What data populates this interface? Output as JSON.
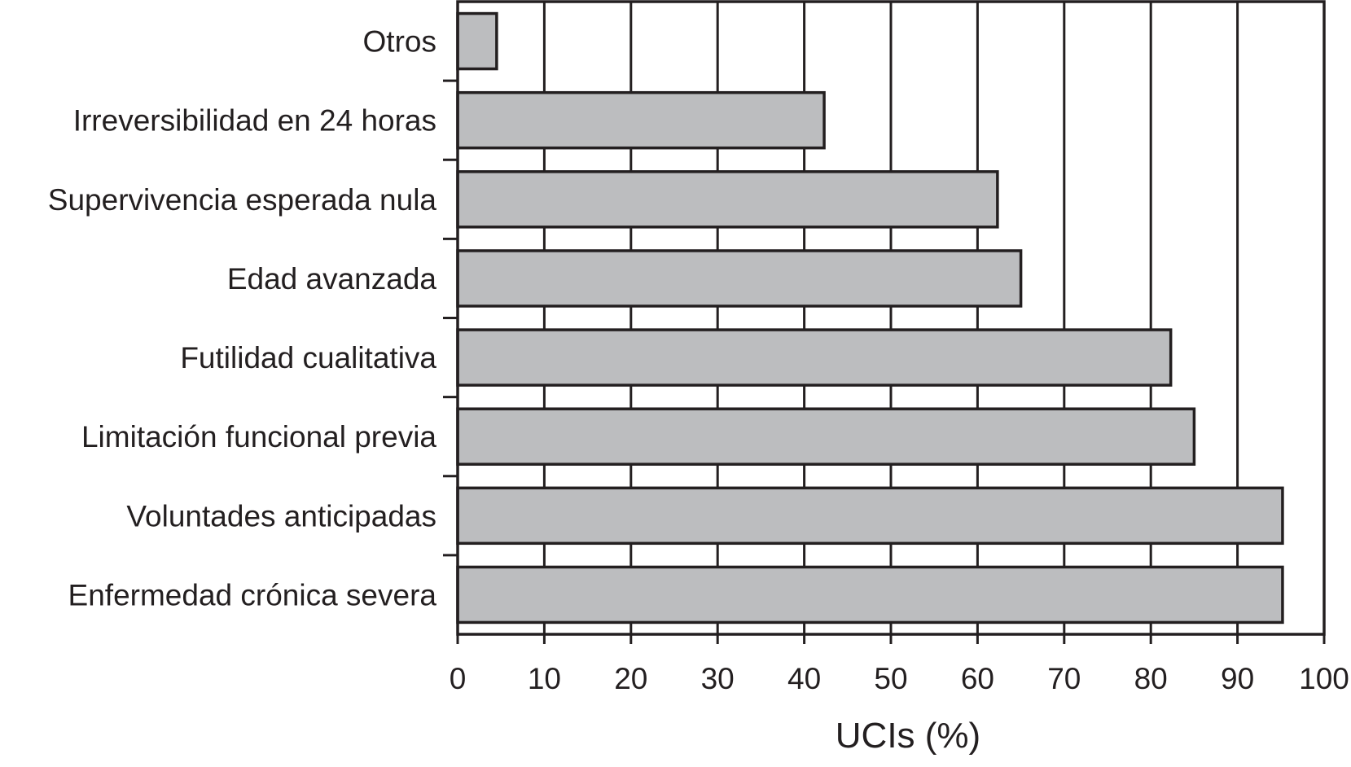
{
  "chart_data": {
    "type": "bar",
    "orientation": "horizontal",
    "categories": [
      "Otros",
      "Irreversibilidad en 24 horas",
      "Supervivencia esperada nula",
      "Edad avanzada",
      "Futilidad cualitativa",
      "Limitación funcional previa",
      "Voluntades anticipadas",
      "Enfermedad crónica severa"
    ],
    "values": [
      4.5,
      42.3,
      62.3,
      65,
      82.3,
      85,
      95.2,
      95.2
    ],
    "xlabel": "UCIs (%)",
    "ylabel": "",
    "title": "",
    "xlim": [
      0,
      100
    ],
    "xticks": [
      "0",
      "10",
      "20",
      "30",
      "40",
      "50",
      "60",
      "70",
      "80",
      "90",
      "100"
    ],
    "grid": "vertical",
    "bar_color": "#bcbdbf",
    "bar_edge_color": "#231f20",
    "legend": "none"
  }
}
